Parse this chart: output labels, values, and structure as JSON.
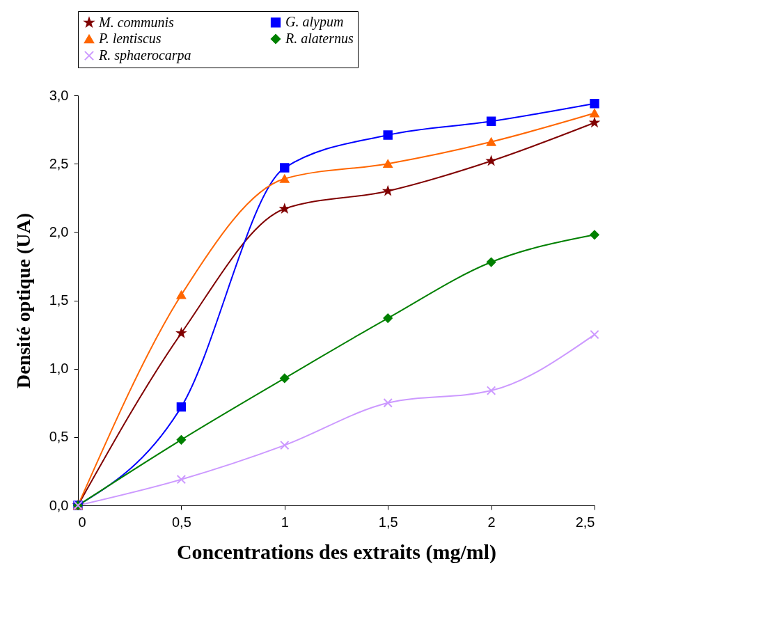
{
  "chart_data": {
    "type": "line",
    "xlabel": "Concentrations des extraits (mg/ml)",
    "ylabel": "Densité optique (UA)",
    "x": [
      0,
      0.5,
      1,
      1.5,
      2,
      2.5
    ],
    "xlim": [
      0,
      2.5
    ],
    "xticks": [
      0,
      {
        "value": 0.5,
        "label": "0,5"
      },
      1,
      {
        "value": 1.5,
        "label": "1,5"
      },
      2,
      {
        "value": 2.5,
        "label": "2,5"
      }
    ],
    "ylim": [
      0,
      3
    ],
    "yticks": [
      {
        "value": 0,
        "label": "0,0"
      },
      {
        "value": 0.5,
        "label": "0,5"
      },
      {
        "value": 1,
        "label": "1,0"
      },
      {
        "value": 1.5,
        "label": "1,5"
      },
      {
        "value": 2,
        "label": "2,0"
      },
      {
        "value": 2.5,
        "label": "2,5"
      },
      {
        "value": 3,
        "label": "3,0"
      }
    ],
    "grid": false,
    "legend": "top",
    "line_style": "solid",
    "series": [
      {
        "name": "M. communis",
        "color": "#800000",
        "marker": "star",
        "values": [
          0,
          1.26,
          2.17,
          2.3,
          2.52,
          2.8
        ]
      },
      {
        "name": "G. alypum",
        "color": "#0000ff",
        "marker": "square",
        "values": [
          0,
          0.72,
          2.47,
          2.71,
          2.81,
          2.94
        ]
      },
      {
        "name": "P. lentiscus",
        "color": "#ff6600",
        "marker": "triangle",
        "values": [
          0,
          1.54,
          2.39,
          2.5,
          2.66,
          2.87
        ]
      },
      {
        "name": "R. alaternus",
        "color": "#008000",
        "marker": "diamond",
        "values": [
          0,
          0.48,
          0.93,
          1.37,
          1.78,
          1.98
        ]
      },
      {
        "name": "R. sphaerocarpa",
        "color": "#cc99ff",
        "marker": "cross",
        "values": [
          0,
          0.19,
          0.44,
          0.75,
          0.84,
          1.25
        ]
      }
    ]
  }
}
